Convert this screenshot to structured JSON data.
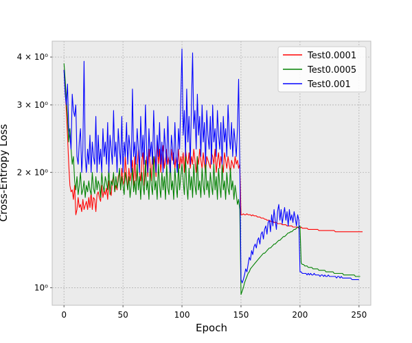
{
  "chart_data": {
    "type": "line",
    "xlabel": "Epoch",
    "ylabel": "Cross-Entropy Loss",
    "xlim": [
      -10,
      260
    ],
    "ylim": [
      0.9,
      4.4
    ],
    "yscale": "log",
    "grid": true,
    "legend_position": "top-right",
    "x_ticks": [
      0,
      50,
      100,
      150,
      200,
      250
    ],
    "x_tick_labels": [
      "0",
      "50",
      "100",
      "150",
      "200",
      "250"
    ],
    "y_ticks": [
      1,
      2,
      3,
      4
    ],
    "y_tick_labels": [
      "10⁰",
      "2 × 10⁰",
      "3 × 10⁰",
      "4 × 10⁰"
    ],
    "x_step": 1,
    "series": [
      {
        "name": "Test0.0001",
        "color": "#ff0000",
        "values": [
          3.7,
          3.3,
          2.9,
          2.5,
          2.1,
          1.85,
          1.78,
          1.8,
          1.7,
          1.85,
          1.55,
          1.6,
          1.72,
          1.62,
          1.65,
          1.58,
          1.7,
          1.6,
          1.64,
          1.68,
          1.6,
          1.72,
          1.62,
          1.78,
          1.6,
          1.72,
          1.7,
          1.58,
          1.75,
          1.78,
          1.72,
          1.68,
          1.85,
          1.72,
          1.8,
          1.75,
          1.82,
          1.7,
          1.9,
          1.8,
          1.74,
          1.9,
          1.95,
          1.78,
          1.85,
          1.8,
          1.95,
          2.0,
          1.8,
          2.05,
          1.85,
          1.9,
          2.2,
          1.95,
          1.8,
          2.05,
          1.9,
          2.0,
          2.15,
          1.85,
          2.2,
          1.9,
          2.05,
          2.3,
          2.0,
          1.9,
          2.15,
          2.25,
          1.85,
          2.0,
          2.2,
          1.95,
          2.3,
          2.1,
          1.9,
          2.25,
          2.05,
          2.2,
          1.95,
          2.4,
          2.1,
          2.3,
          2.0,
          2.2,
          2.35,
          2.05,
          2.15,
          2.3,
          2.1,
          2.2,
          2.0,
          2.3,
          2.15,
          2.25,
          2.05,
          2.2,
          2.1,
          2.3,
          2.05,
          2.2,
          2.1,
          2.25,
          2.0,
          2.3,
          2.15,
          2.1,
          2.25,
          2.05,
          2.2,
          2.1,
          2.3,
          2.15,
          2.0,
          2.2,
          2.1,
          2.3,
          2.15,
          2.05,
          2.25,
          2.1,
          2.0,
          2.2,
          2.15,
          2.1,
          2.05,
          2.25,
          2.2,
          2.1,
          2.3,
          2.0,
          2.15,
          2.25,
          2.05,
          2.2,
          2.1,
          2.0,
          2.25,
          2.15,
          2.05,
          2.2,
          2.1,
          2.0,
          2.15,
          2.1,
          2.05,
          2.2,
          2.1,
          2.15,
          2.05,
          2.1,
          1.55,
          1.55,
          1.56,
          1.55,
          1.55,
          1.56,
          1.55,
          1.55,
          1.55,
          1.54,
          1.55,
          1.54,
          1.54,
          1.54,
          1.53,
          1.53,
          1.53,
          1.52,
          1.52,
          1.52,
          1.51,
          1.51,
          1.5,
          1.5,
          1.5,
          1.49,
          1.49,
          1.49,
          1.48,
          1.48,
          1.48,
          1.47,
          1.47,
          1.47,
          1.47,
          1.46,
          1.46,
          1.46,
          1.46,
          1.45,
          1.45,
          1.45,
          1.45,
          1.45,
          1.44,
          1.44,
          1.44,
          1.44,
          1.44,
          1.43,
          1.43,
          1.44,
          1.43,
          1.43,
          1.43,
          1.43,
          1.43,
          1.42,
          1.42,
          1.42,
          1.42,
          1.42,
          1.42,
          1.42,
          1.42,
          1.42,
          1.41,
          1.41,
          1.41,
          1.41,
          1.41,
          1.41,
          1.41,
          1.41,
          1.41,
          1.41,
          1.41,
          1.41,
          1.41,
          1.41,
          1.4,
          1.4,
          1.4,
          1.4,
          1.4,
          1.4,
          1.4,
          1.4,
          1.4,
          1.4,
          1.4,
          1.4,
          1.4,
          1.4,
          1.4,
          1.4,
          1.4,
          1.4,
          1.4,
          1.4,
          1.4,
          1.4,
          1.4,
          1.4
        ]
      },
      {
        "name": "Test0.0005",
        "color": "#008000",
        "values": [
          3.85,
          3.5,
          3.1,
          2.8,
          2.4,
          2.6,
          2.3,
          2.1,
          2.2,
          1.9,
          1.8,
          1.95,
          1.75,
          1.85,
          2.0,
          1.75,
          1.8,
          1.9,
          1.72,
          1.85,
          1.78,
          1.9,
          1.8,
          1.75,
          2.0,
          1.82,
          1.76,
          1.95,
          1.8,
          1.9,
          1.85,
          1.72,
          2.0,
          1.85,
          1.78,
          1.95,
          1.88,
          1.8,
          2.05,
          1.75,
          1.9,
          1.85,
          2.0,
          1.78,
          1.95,
          1.82,
          1.9,
          2.05,
          1.8,
          1.95,
          1.85,
          1.75,
          2.0,
          1.9,
          1.8,
          1.95,
          1.72,
          1.85,
          2.05,
          1.78,
          1.9,
          1.75,
          2.1,
          1.8,
          1.95,
          1.7,
          2.0,
          1.85,
          1.75,
          2.15,
          1.8,
          1.9,
          1.7,
          2.05,
          1.85,
          1.75,
          2.2,
          1.8,
          1.9,
          1.7,
          2.1,
          1.85,
          1.72,
          2.0,
          1.8,
          1.95,
          1.7,
          2.1,
          1.82,
          1.75,
          2.15,
          1.8,
          1.9,
          1.7,
          2.05,
          1.85,
          1.72,
          2.1,
          1.8,
          1.95,
          2.1,
          1.9,
          1.75,
          2.2,
          1.85,
          1.7,
          2.05,
          1.8,
          1.95,
          1.72,
          2.1,
          1.85,
          1.75,
          2.2,
          1.8,
          1.9,
          1.72,
          2.05,
          1.85,
          1.75,
          2.15,
          1.8,
          1.9,
          1.72,
          2.0,
          1.85,
          1.75,
          2.1,
          1.8,
          1.95,
          1.7,
          2.05,
          1.85,
          1.72,
          2.1,
          1.8,
          1.9,
          1.7,
          2.0,
          1.82,
          1.75,
          2.05,
          1.8,
          1.9,
          1.7,
          1.85,
          1.75,
          1.65,
          1.7,
          1.6,
          0.96,
          0.98,
          1.0,
          1.03,
          1.05,
          1.07,
          1.09,
          1.1,
          1.12,
          1.13,
          1.14,
          1.15,
          1.16,
          1.17,
          1.18,
          1.19,
          1.2,
          1.21,
          1.22,
          1.23,
          1.23,
          1.24,
          1.25,
          1.26,
          1.27,
          1.27,
          1.28,
          1.29,
          1.3,
          1.3,
          1.31,
          1.32,
          1.33,
          1.33,
          1.34,
          1.35,
          1.36,
          1.36,
          1.37,
          1.38,
          1.39,
          1.39,
          1.4,
          1.4,
          1.41,
          1.42,
          1.42,
          1.43,
          1.44,
          1.44,
          1.45,
          1.16,
          1.15,
          1.15,
          1.14,
          1.14,
          1.14,
          1.13,
          1.13,
          1.13,
          1.13,
          1.12,
          1.12,
          1.12,
          1.12,
          1.12,
          1.11,
          1.11,
          1.11,
          1.11,
          1.11,
          1.11,
          1.1,
          1.1,
          1.1,
          1.1,
          1.1,
          1.1,
          1.1,
          1.09,
          1.09,
          1.09,
          1.09,
          1.09,
          1.09,
          1.09,
          1.09,
          1.08,
          1.08,
          1.08,
          1.08,
          1.08,
          1.08,
          1.08,
          1.08,
          1.08,
          1.08,
          1.07,
          1.07,
          1.07,
          1.07,
          1.07
        ]
      },
      {
        "name": "Test0.001",
        "color": "#0000ff",
        "values": [
          3.7,
          3.2,
          3.0,
          3.4,
          2.6,
          2.5,
          2.3,
          3.2,
          2.9,
          2.8,
          3.0,
          2.2,
          2.1,
          2.4,
          2.6,
          2.0,
          2.3,
          3.9,
          2.2,
          2.0,
          2.3,
          2.1,
          2.5,
          2.0,
          2.4,
          2.2,
          2.1,
          2.8,
          2.0,
          2.5,
          2.1,
          2.3,
          2.0,
          2.6,
          2.2,
          2.4,
          2.1,
          2.7,
          2.0,
          2.5,
          2.3,
          2.1,
          2.9,
          2.2,
          2.4,
          2.0,
          2.6,
          2.3,
          2.1,
          2.8,
          2.0,
          2.4,
          2.2,
          2.7,
          2.1,
          2.5,
          2.3,
          2.0,
          3.3,
          2.2,
          2.4,
          2.1,
          2.6,
          2.3,
          2.0,
          2.8,
          2.2,
          2.5,
          2.1,
          3.0,
          2.3,
          2.0,
          2.6,
          2.2,
          2.4,
          2.1,
          2.9,
          2.3,
          2.0,
          2.5,
          2.2,
          2.7,
          2.1,
          2.4,
          2.0,
          2.6,
          2.3,
          2.1,
          2.8,
          2.2,
          2.0,
          2.5,
          2.3,
          2.1,
          2.7,
          2.2,
          2.0,
          2.6,
          2.3,
          3.1,
          4.2,
          2.5,
          2.9,
          2.2,
          3.3,
          2.4,
          2.8,
          2.1,
          3.0,
          4.1,
          2.6,
          2.9,
          2.3,
          3.2,
          2.5,
          2.8,
          2.2,
          3.0,
          2.4,
          2.7,
          2.1,
          2.9,
          2.5,
          2.3,
          2.8,
          2.1,
          3.0,
          2.4,
          2.6,
          2.2,
          2.9,
          2.5,
          2.3,
          2.7,
          2.1,
          2.8,
          2.4,
          2.6,
          2.2,
          3.0,
          2.5,
          2.3,
          2.7,
          2.2,
          2.6,
          2.4,
          2.2,
          2.6,
          3.5,
          2.1,
          1.05,
          1.03,
          1.05,
          1.08,
          1.12,
          1.1,
          1.15,
          1.2,
          1.18,
          1.25,
          1.22,
          1.28,
          1.3,
          1.27,
          1.33,
          1.35,
          1.3,
          1.38,
          1.4,
          1.34,
          1.42,
          1.45,
          1.38,
          1.48,
          1.5,
          1.4,
          1.55,
          1.45,
          1.6,
          1.5,
          1.42,
          1.58,
          1.65,
          1.5,
          1.6,
          1.47,
          1.55,
          1.62,
          1.5,
          1.58,
          1.45,
          1.6,
          1.5,
          1.55,
          1.48,
          1.58,
          1.52,
          1.45,
          1.55,
          1.5,
          1.1,
          1.1,
          1.09,
          1.09,
          1.09,
          1.09,
          1.08,
          1.09,
          1.08,
          1.09,
          1.08,
          1.08,
          1.09,
          1.08,
          1.08,
          1.08,
          1.08,
          1.07,
          1.08,
          1.08,
          1.07,
          1.08,
          1.07,
          1.07,
          1.08,
          1.07,
          1.07,
          1.07,
          1.07,
          1.07,
          1.07,
          1.06,
          1.07,
          1.07,
          1.06,
          1.07,
          1.06,
          1.06,
          1.06,
          1.06,
          1.06,
          1.06,
          1.06,
          1.06,
          1.05,
          1.05,
          1.05,
          1.05,
          1.05,
          1.05,
          1.05
        ]
      }
    ]
  }
}
